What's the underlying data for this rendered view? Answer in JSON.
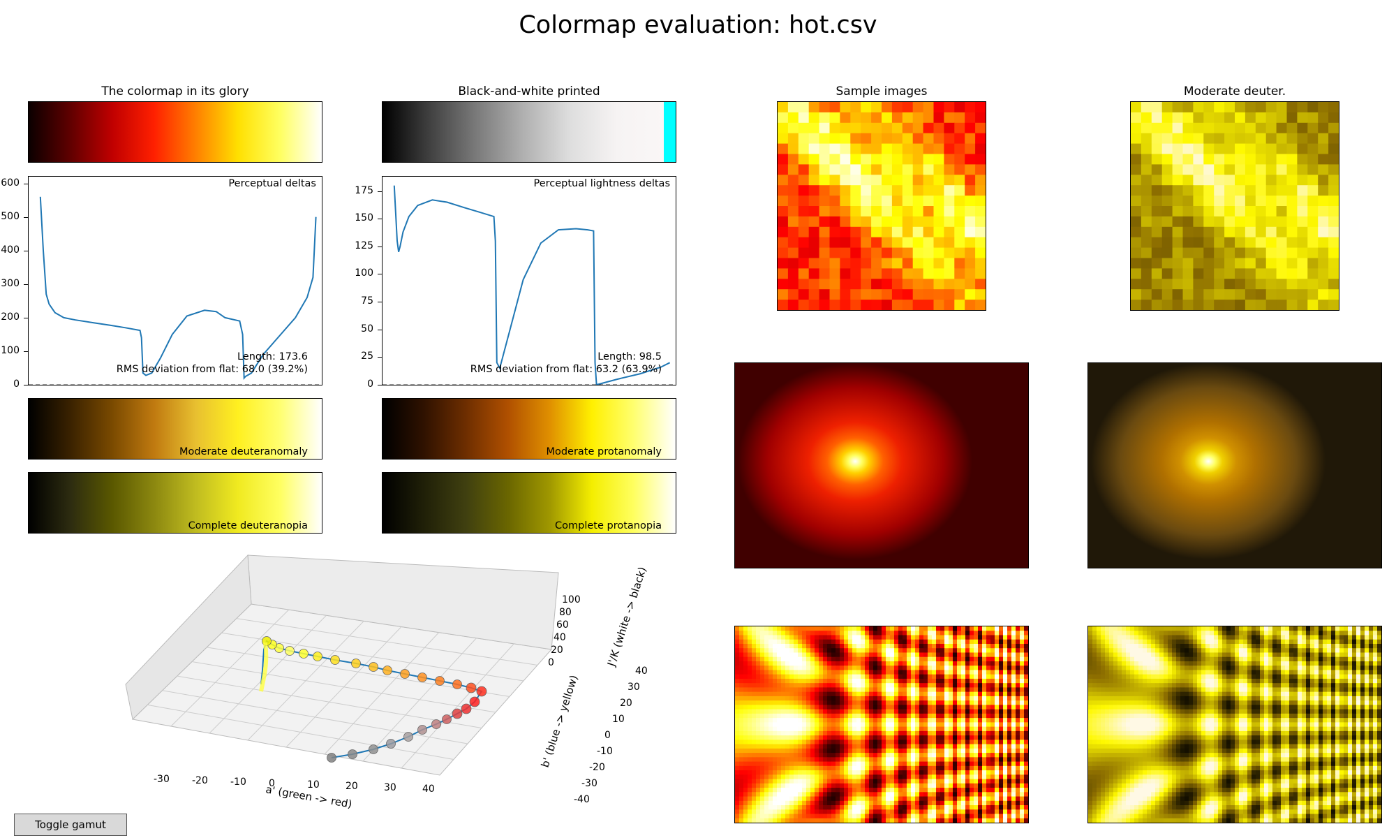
{
  "title": "Colormap evaluation: hot.csv",
  "panels": {
    "glory_title": "The colormap in its glory",
    "bw_title": "Black-and-white printed",
    "samples_title": "Sample images",
    "deuter_title": "Moderate deuter."
  },
  "colors": {
    "hot": [
      "#0b0000",
      "#600000",
      "#c00000",
      "#ff2000",
      "#ff8000",
      "#ffe000",
      "#ffff60",
      "#ffffff"
    ],
    "bw": [
      "#000000",
      "#404040",
      "#7a7a7a",
      "#b0b0b0",
      "#dedede",
      "#f6f3f3",
      "#faf7f7"
    ],
    "bw_cap": "#00ffff",
    "mod_deuteranomaly": [
      "#000000",
      "#3a2200",
      "#7a4a00",
      "#c07a10",
      "#e8c030",
      "#fff020",
      "#ffff70",
      "#ffffff"
    ],
    "mod_protanomaly": [
      "#000000",
      "#301200",
      "#6e2e00",
      "#b05000",
      "#e09000",
      "#fff000",
      "#ffff70",
      "#ffffff"
    ],
    "complete_deuteranopia": [
      "#000000",
      "#2d2c10",
      "#5a5800",
      "#8c8810",
      "#c0bc20",
      "#f0ea20",
      "#ffff60",
      "#ffffff"
    ],
    "complete_protanopia": [
      "#000000",
      "#202008",
      "#404010",
      "#6a6600",
      "#a09800",
      "#f4ee00",
      "#ffff60",
      "#ffffff"
    ],
    "line": "#1f77b4"
  },
  "chart_data": [
    {
      "type": "line",
      "name": "perceptual-deltas",
      "label": "Perceptual deltas",
      "yticks": [
        0,
        100,
        200,
        300,
        400,
        500,
        600
      ],
      "ylim": [
        0,
        620
      ],
      "xlim": [
        0,
        1
      ],
      "x": [
        0.04,
        0.05,
        0.06,
        0.07,
        0.09,
        0.12,
        0.16,
        0.22,
        0.28,
        0.33,
        0.38,
        0.385,
        0.39,
        0.4,
        0.42,
        0.45,
        0.49,
        0.54,
        0.6,
        0.64,
        0.67,
        0.72,
        0.73,
        0.735,
        0.74,
        0.76,
        0.8,
        0.86,
        0.91,
        0.95,
        0.97,
        0.98
      ],
      "y": [
        560,
        400,
        270,
        240,
        215,
        200,
        193,
        185,
        177,
        170,
        162,
        140,
        35,
        28,
        35,
        80,
        150,
        205,
        222,
        218,
        200,
        190,
        150,
        20,
        25,
        35,
        90,
        150,
        200,
        260,
        320,
        500
      ],
      "annotation_length": "Length: 173.6",
      "annotation_rms": "RMS deviation from flat: 68.0 (39.2%)"
    },
    {
      "type": "line",
      "name": "perceptual-lightness-deltas",
      "label": "Perceptual lightness deltas",
      "yticks": [
        0,
        25,
        50,
        75,
        100,
        125,
        150,
        175
      ],
      "ylim": [
        0,
        188
      ],
      "xlim": [
        0,
        1
      ],
      "x": [
        0.04,
        0.05,
        0.055,
        0.06,
        0.07,
        0.09,
        0.12,
        0.17,
        0.22,
        0.28,
        0.33,
        0.38,
        0.385,
        0.39,
        0.4,
        0.43,
        0.48,
        0.54,
        0.6,
        0.66,
        0.7,
        0.72,
        0.725,
        0.73,
        0.8,
        0.88,
        0.95,
        0.98
      ],
      "y": [
        180,
        130,
        120,
        125,
        138,
        152,
        162,
        167,
        165,
        160,
        156,
        152,
        130,
        20,
        15,
        45,
        95,
        128,
        140,
        141,
        140,
        139,
        20,
        0,
        5,
        10,
        16,
        20
      ],
      "annotation_length": "Length: 98.5",
      "annotation_rms": "RMS deviation from flat: 63.2 (63.9%)"
    },
    {
      "type": "scatter",
      "name": "3d-colorspace-path",
      "xlabel": "a' (green -> red)",
      "ylabel": "b' (blue -> yellow)",
      "zlabel": "J'/K (white -> black)",
      "xticks": [
        -30,
        -20,
        -10,
        0,
        10,
        20,
        30,
        40
      ],
      "yticks": [
        -40,
        -30,
        -20,
        -10,
        0,
        10,
        20,
        30,
        40
      ],
      "zticks": [
        0,
        20,
        40,
        60,
        80,
        100
      ]
    }
  ],
  "colorbars": {
    "moderate_deuteranomaly": "Moderate deuteranomaly",
    "moderate_protanomaly": "Moderate protanomaly",
    "complete_deuteranopia": "Complete deuteranopia",
    "complete_protanopia": "Complete protanopia"
  },
  "button": {
    "label": "Toggle gamut"
  }
}
